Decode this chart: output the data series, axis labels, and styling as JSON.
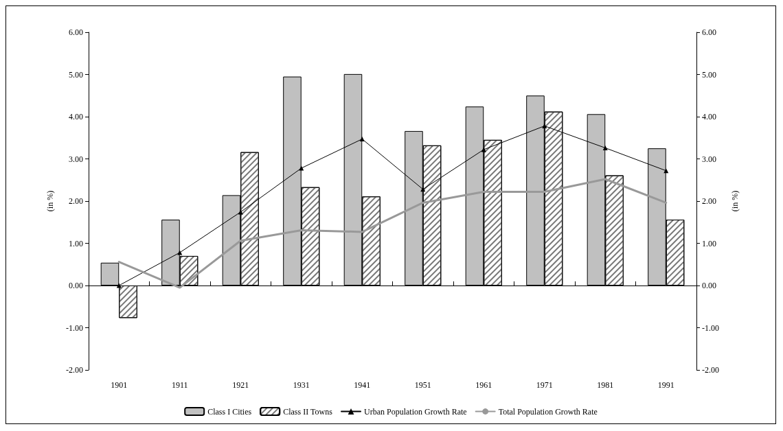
{
  "chart_data": {
    "type": "bar",
    "ylabel": "(in %)",
    "y2label": "(in %)",
    "categories": [
      "1901",
      "1911",
      "1921",
      "1931",
      "1941",
      "1951",
      "1961",
      "1971",
      "1981",
      "1991"
    ],
    "series": [
      {
        "name": "Class I Cities",
        "color": "#c0c0c0",
        "values": [
          0.54,
          1.56,
          2.14,
          4.95,
          5.01,
          3.66,
          4.24,
          4.5,
          4.06,
          3.25
        ]
      },
      {
        "name": "Class II Towns",
        "color": "#ffffff",
        "values": [
          -0.77,
          0.7,
          3.16,
          2.33,
          2.11,
          3.32,
          3.45,
          4.12,
          2.61,
          1.56
        ]
      },
      {
        "name": "Urban Population Growth Rate",
        "type": "line",
        "color": "#000000",
        "marker": "triangle",
        "values": [
          0.0,
          0.78,
          1.74,
          2.78,
          3.47,
          2.28,
          3.22,
          3.78,
          3.26,
          2.72
        ]
      },
      {
        "name": "Total Population Growth Rate",
        "type": "line",
        "color": "#999999",
        "marker": "none",
        "values": [
          0.56,
          -0.05,
          1.06,
          1.31,
          1.27,
          1.96,
          2.22,
          2.22,
          2.52,
          1.96
        ]
      }
    ],
    "ylim": [
      -2,
      6
    ],
    "yticks": [
      {
        "value": -2,
        "label": "-2.00"
      },
      {
        "value": -1,
        "label": "-1.00"
      },
      {
        "value": 0,
        "label": "0.00"
      },
      {
        "value": 1,
        "label": "1.00"
      },
      {
        "value": 2,
        "label": "2.00"
      },
      {
        "value": 3,
        "label": "3.00"
      },
      {
        "value": 4,
        "label": "4.00"
      },
      {
        "value": 5,
        "label": "5.00"
      },
      {
        "value": 6,
        "label": "6.00"
      }
    ],
    "y2lim": [
      -2,
      6
    ],
    "y2ticks": [
      {
        "value": -2,
        "label": "-2.00"
      },
      {
        "value": -1,
        "label": "-1.00"
      },
      {
        "value": 0,
        "label": "0.00"
      },
      {
        "value": 1,
        "label": "1.00"
      },
      {
        "value": 2,
        "label": "2.00"
      },
      {
        "value": 3,
        "label": "3.00"
      },
      {
        "value": 4,
        "label": "4.00"
      },
      {
        "value": 5,
        "label": "5.00"
      },
      {
        "value": 6,
        "label": "6.00"
      }
    ],
    "legend": "bottom"
  }
}
